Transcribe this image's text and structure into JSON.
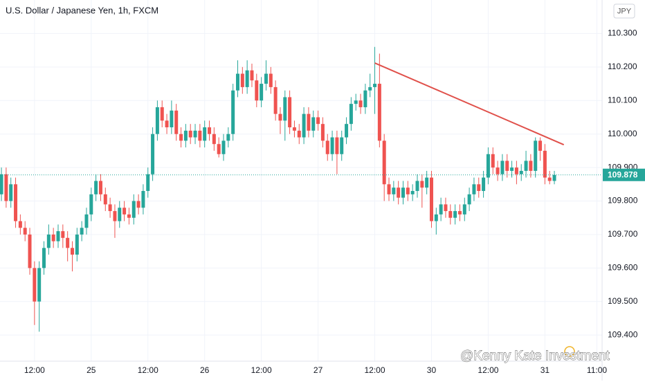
{
  "chart_data": {
    "type": "candlestick",
    "title": "U.S. Dollar / Japanese Yen, 1h, FXCM",
    "currency": "JPY",
    "watermark": "@Kenny Kate Investment",
    "up_color": "#26a69a",
    "down_color": "#ef5350",
    "grid": true,
    "open": [
      109.82,
      109.88,
      109.8,
      109.85,
      109.74,
      109.72,
      109.7,
      109.6,
      109.5,
      109.6,
      109.66,
      109.7,
      109.68,
      109.71,
      109.69,
      109.66,
      109.64,
      109.7,
      109.72,
      109.76,
      109.82,
      109.86,
      109.82,
      109.79,
      109.77,
      109.74,
      109.78,
      109.76,
      109.75,
      109.8,
      109.78,
      109.83,
      109.88,
      110.0,
      110.08,
      110.04,
      110.02,
      110.07,
      110.0,
      109.98,
      110.01,
      109.99,
      110.01,
      109.98,
      110.02,
      110.0,
      109.97,
      109.94,
      109.98,
      110.0,
      110.13,
      110.18,
      110.14,
      110.19,
      110.16,
      110.1,
      110.15,
      110.18,
      110.14,
      110.06,
      110.04,
      110.11,
      110.02,
      110.01,
      109.99,
      110.06,
      110.01,
      110.05,
      110.03,
      109.98,
      109.94,
      109.99,
      109.94,
      109.99,
      110.03,
      110.09,
      110.1,
      110.08,
      110.13,
      110.14,
      110.15,
      109.98,
      109.85,
      109.82,
      109.84,
      109.81,
      109.84,
      109.82,
      109.83,
      109.86,
      109.84,
      109.87,
      109.74,
      109.76,
      109.79,
      109.77,
      109.75,
      109.77,
      109.76,
      109.79,
      109.82,
      109.85,
      109.83,
      109.87,
      109.94,
      109.9,
      109.88,
      109.92,
      109.89,
      109.9,
      109.88,
      109.89,
      109.92,
      109.89,
      109.98,
      109.95,
      109.87,
      109.86
    ],
    "high": [
      109.9,
      109.9,
      109.87,
      109.87,
      109.76,
      109.74,
      109.72,
      109.62,
      109.62,
      109.68,
      109.73,
      109.72,
      109.73,
      109.73,
      109.71,
      109.68,
      109.72,
      109.74,
      109.78,
      109.84,
      109.88,
      109.88,
      109.84,
      109.81,
      109.79,
      109.8,
      109.8,
      109.78,
      109.82,
      109.82,
      109.85,
      109.9,
      110.02,
      110.1,
      110.1,
      110.06,
      110.1,
      110.09,
      110.02,
      110.03,
      110.03,
      110.03,
      110.03,
      110.04,
      110.04,
      110.02,
      109.99,
      110.0,
      110.02,
      110.15,
      110.22,
      110.2,
      110.22,
      110.21,
      110.18,
      110.17,
      110.22,
      110.2,
      110.16,
      110.08,
      110.13,
      110.13,
      110.04,
      110.03,
      110.08,
      110.08,
      110.07,
      110.07,
      110.05,
      110.0,
      110.01,
      110.01,
      110.01,
      110.05,
      110.11,
      110.12,
      110.12,
      110.15,
      110.18,
      110.26,
      110.24,
      110.0,
      109.87,
      109.86,
      109.86,
      109.86,
      109.86,
      109.85,
      109.88,
      109.88,
      109.89,
      109.89,
      109.78,
      109.81,
      109.81,
      109.79,
      109.79,
      109.79,
      109.81,
      109.84,
      109.87,
      109.87,
      109.89,
      109.96,
      109.96,
      109.92,
      109.94,
      109.94,
      109.92,
      109.92,
      109.91,
      109.95,
      109.94,
      109.99,
      109.99,
      109.97,
      109.89,
      109.89
    ],
    "low": [
      109.8,
      109.78,
      109.78,
      109.72,
      109.7,
      109.68,
      109.58,
      109.43,
      109.41,
      109.58,
      109.64,
      109.66,
      109.66,
      109.66,
      109.62,
      109.59,
      109.62,
      109.68,
      109.7,
      109.74,
      109.8,
      109.8,
      109.77,
      109.75,
      109.69,
      109.72,
      109.74,
      109.73,
      109.73,
      109.76,
      109.76,
      109.81,
      109.86,
      109.98,
      110.02,
      110.0,
      110.0,
      109.98,
      109.96,
      109.96,
      109.97,
      109.97,
      109.96,
      109.96,
      109.98,
      109.95,
      109.93,
      109.92,
      109.96,
      109.98,
      110.11,
      110.12,
      110.12,
      110.14,
      110.08,
      110.08,
      110.13,
      110.12,
      110.04,
      110.0,
      109.98,
      110.0,
      109.99,
      109.97,
      109.97,
      109.99,
      109.99,
      110.01,
      109.96,
      109.92,
      109.92,
      109.88,
      109.92,
      109.97,
      110.01,
      110.07,
      110.06,
      110.06,
      110.11,
      110.06,
      109.96,
      109.8,
      109.8,
      109.8,
      109.79,
      109.79,
      109.8,
      109.8,
      109.81,
      109.78,
      109.82,
      109.72,
      109.7,
      109.74,
      109.75,
      109.73,
      109.73,
      109.74,
      109.74,
      109.77,
      109.8,
      109.81,
      109.81,
      109.85,
      109.88,
      109.86,
      109.86,
      109.87,
      109.87,
      109.85,
      109.86,
      109.87,
      109.87,
      109.87,
      109.92,
      109.85,
      109.85,
      109.85
    ],
    "close": [
      109.88,
      109.8,
      109.85,
      109.74,
      109.72,
      109.7,
      109.6,
      109.5,
      109.6,
      109.66,
      109.7,
      109.68,
      109.71,
      109.69,
      109.66,
      109.64,
      109.7,
      109.72,
      109.76,
      109.82,
      109.86,
      109.82,
      109.79,
      109.77,
      109.74,
      109.78,
      109.76,
      109.75,
      109.8,
      109.78,
      109.83,
      109.88,
      110.0,
      110.08,
      110.04,
      110.02,
      110.07,
      110.0,
      109.98,
      110.01,
      109.99,
      110.01,
      109.98,
      110.02,
      110.0,
      109.97,
      109.94,
      109.98,
      110.0,
      110.13,
      110.18,
      110.14,
      110.19,
      110.16,
      110.1,
      110.15,
      110.18,
      110.14,
      110.06,
      110.04,
      110.11,
      110.02,
      110.01,
      109.99,
      110.06,
      110.01,
      110.05,
      110.03,
      109.98,
      109.94,
      109.99,
      109.94,
      109.99,
      110.03,
      110.09,
      110.1,
      110.08,
      110.13,
      110.14,
      110.15,
      109.98,
      109.85,
      109.82,
      109.84,
      109.81,
      109.84,
      109.82,
      109.83,
      109.86,
      109.84,
      109.87,
      109.74,
      109.76,
      109.79,
      109.77,
      109.75,
      109.77,
      109.76,
      109.79,
      109.82,
      109.85,
      109.83,
      109.87,
      109.94,
      109.9,
      109.88,
      109.92,
      109.89,
      109.9,
      109.88,
      109.89,
      109.92,
      109.89,
      109.98,
      109.95,
      109.87,
      109.86,
      109.878
    ],
    "last_price": 109.878,
    "trendline": {
      "color": "#e0504a",
      "start": [
        79,
        110.212
      ],
      "end": [
        119,
        109.968
      ]
    },
    "xlim": [
      -0.3,
      127.1
    ],
    "ylim": [
      109.322,
      110.4
    ],
    "xticks": [
      {
        "value": 7,
        "label": "12:00"
      },
      {
        "value": 19,
        "label": "25"
      },
      {
        "value": 31,
        "label": "12:00"
      },
      {
        "value": 43,
        "label": "26"
      },
      {
        "value": 55,
        "label": "12:00"
      },
      {
        "value": 67,
        "label": "27"
      },
      {
        "value": 79,
        "label": "12:00"
      },
      {
        "value": 91,
        "label": "30"
      },
      {
        "value": 103,
        "label": "12:00"
      },
      {
        "value": 115,
        "label": "31"
      },
      {
        "value": 126,
        "label": "11:00"
      }
    ],
    "yticks": [
      {
        "value": 109.4,
        "label": "109.400"
      },
      {
        "value": 109.5,
        "label": "109.500"
      },
      {
        "value": 109.6,
        "label": "109.600"
      },
      {
        "value": 109.7,
        "label": "109.700"
      },
      {
        "value": 109.8,
        "label": "109.800"
      },
      {
        "value": 109.9,
        "label": "109.900"
      },
      {
        "value": 110.0,
        "label": "110.000"
      },
      {
        "value": 110.1,
        "label": "110.100"
      },
      {
        "value": 110.2,
        "label": "110.200"
      },
      {
        "value": 110.3,
        "label": "110.300"
      }
    ]
  }
}
